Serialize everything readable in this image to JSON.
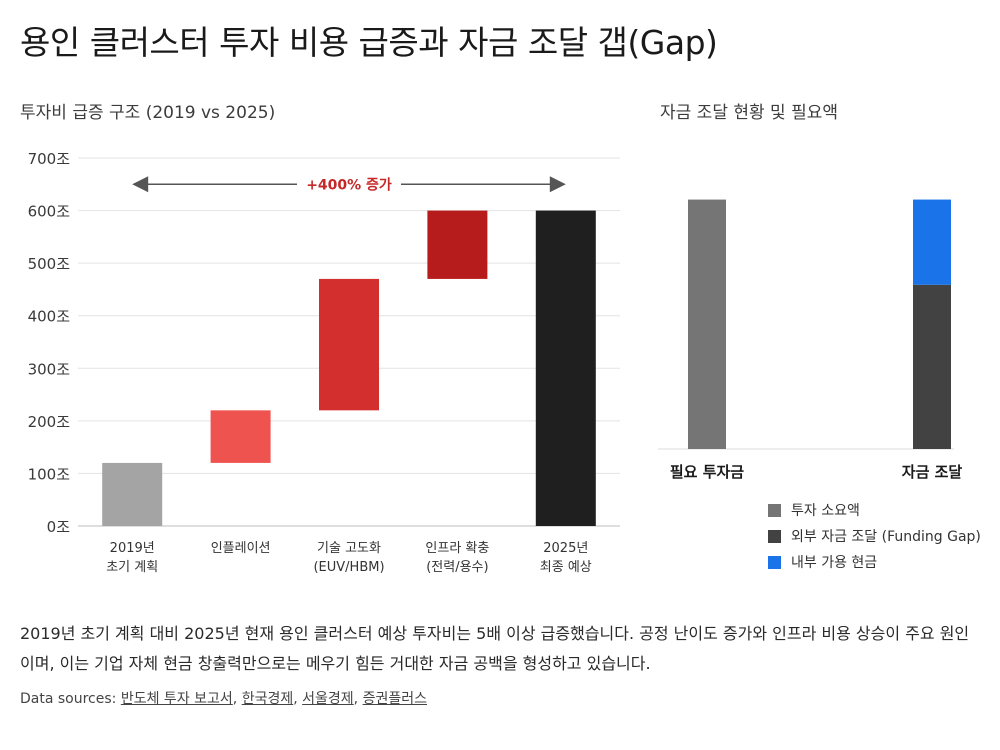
{
  "title": "용인 클러스터 투자 비용 급증과 자금 조달 갭(Gap)",
  "colors": {
    "base_gray": "#a4a4a4",
    "inflation_red": "#ef5350",
    "tech_red": "#d32f2f",
    "infra_red": "#b71c1c",
    "final_black": "#1f1f1f",
    "need_gray": "#757575",
    "external_dark": "#424242",
    "internal_blue": "#1a73e8",
    "annotation_red": "#c62828",
    "arrow_gray": "#555555"
  },
  "chart_data": [
    {
      "type": "bar",
      "subtype": "waterfall",
      "title": "투자비 급증 구조 (2019 vs 2025)",
      "unit": "조",
      "ylim": [
        0,
        700
      ],
      "yticks": [
        "0조",
        "100조",
        "200조",
        "300조",
        "400조",
        "500조",
        "600조",
        "700조"
      ],
      "grid": true,
      "bars": [
        {
          "label_lines": [
            "2019년",
            "초기 계획"
          ],
          "start": 0,
          "end": 120,
          "color_key": "base_gray"
        },
        {
          "label_lines": [
            "인플레이션"
          ],
          "start": 120,
          "end": 220,
          "color_key": "inflation_red"
        },
        {
          "label_lines": [
            "기술 고도화",
            "(EUV/HBM)"
          ],
          "start": 220,
          "end": 470,
          "color_key": "tech_red"
        },
        {
          "label_lines": [
            "인프라 확충",
            "(전력/용수)"
          ],
          "start": 470,
          "end": 600,
          "color_key": "infra_red"
        },
        {
          "label_lines": [
            "2025년",
            "최종 예상"
          ],
          "start": 0,
          "end": 600,
          "color_key": "final_black"
        }
      ],
      "annotation": {
        "text": "+400% 증가",
        "y": 650
      }
    },
    {
      "type": "bar",
      "subtype": "stacked",
      "title": "자금 조달 현황 및 필요액",
      "categories": [
        "필요 투자금",
        "자금 조달"
      ],
      "ylim": [
        0,
        700
      ],
      "grid": false,
      "series": [
        {
          "name": "투자 소요액",
          "values": [
            600,
            0
          ],
          "color_key": "need_gray"
        },
        {
          "name": "외부 자금 조달 (Funding Gap)",
          "values": [
            0,
            395
          ],
          "color_key": "external_dark"
        },
        {
          "name": "내부 가용 현금",
          "values": [
            0,
            205
          ],
          "color_key": "internal_blue"
        }
      ],
      "legend_position": "bottom"
    }
  ],
  "description": "2019년 초기 계획 대비 2025년 현재 용인 클러스터 예상 투자비는 5배 이상 급증했습니다. 공정 난이도 증가와 인프라 비용 상승이 주요 원인이며, 이는 기업 자체 현금 창출력만으로는 메우기 힘든 거대한 자금 공백을 형성하고 있습니다.",
  "sources": {
    "label": "Data sources:",
    "links": [
      "반도체 투자 보고서",
      "한국경제",
      "서울경제",
      "증권플러스"
    ]
  }
}
